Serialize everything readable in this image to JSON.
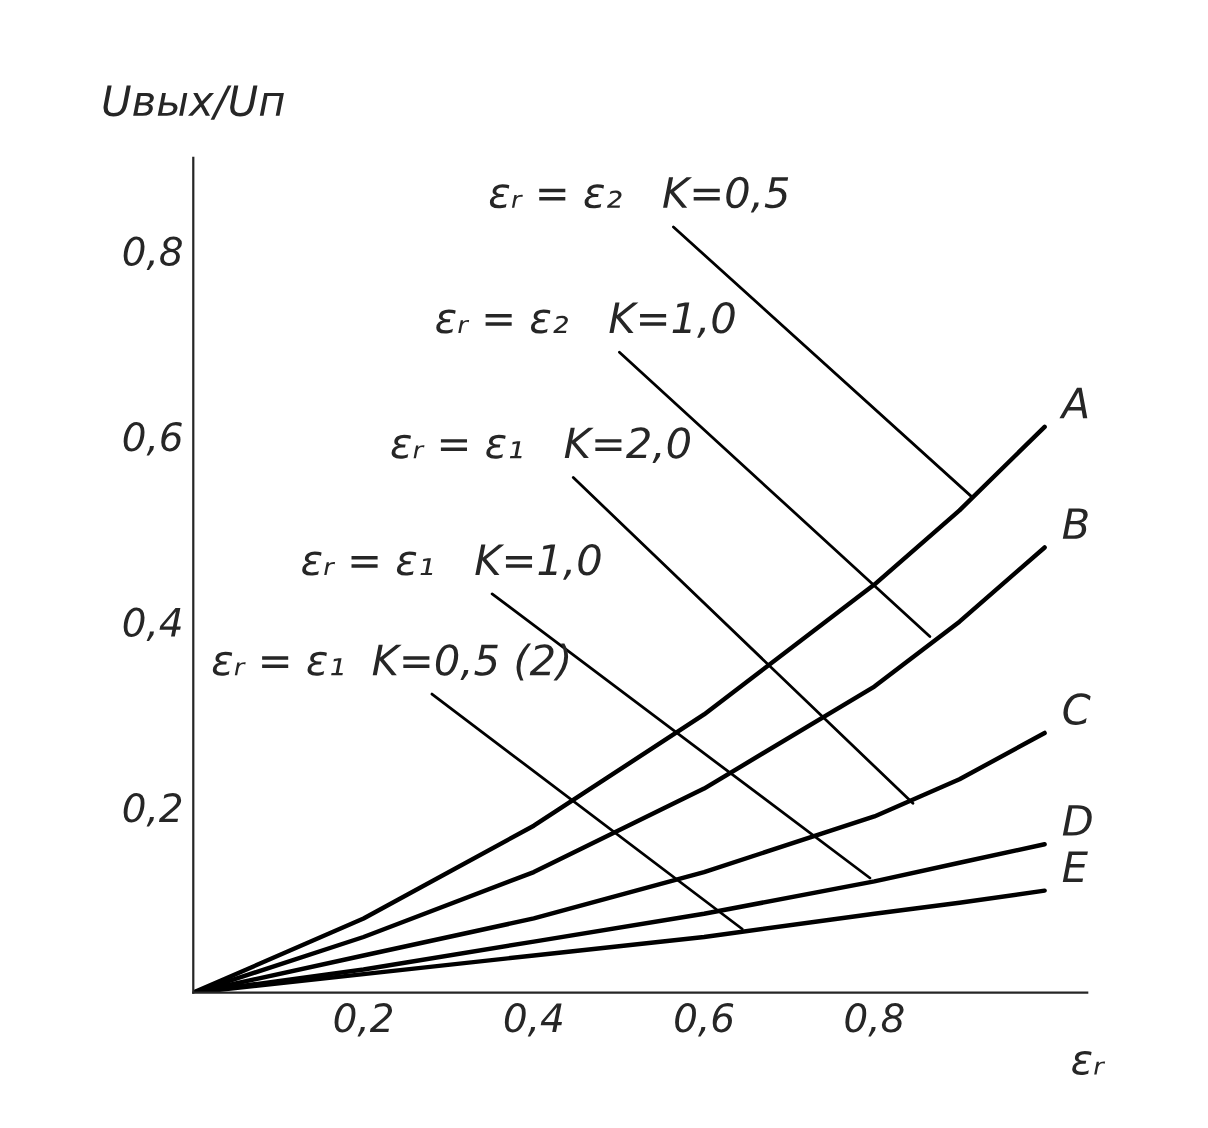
{
  "chart_data": {
    "type": "line",
    "xlabel": "εᵣ",
    "ylabel": "Uвых/Uп",
    "x": [
      0,
      0.2,
      0.4,
      0.6,
      0.8,
      0.9,
      1.0
    ],
    "series": [
      {
        "name": "A",
        "color": "#000000",
        "values": [
          0,
          0.08,
          0.18,
          0.3,
          0.44,
          0.52,
          0.61
        ]
      },
      {
        "name": "B",
        "color": "#000000",
        "values": [
          0,
          0.06,
          0.13,
          0.22,
          0.33,
          0.4,
          0.48
        ]
      },
      {
        "name": "C",
        "color": "#000000",
        "values": [
          0,
          0.04,
          0.08,
          0.13,
          0.19,
          0.23,
          0.28
        ]
      },
      {
        "name": "D",
        "color": "#000000",
        "values": [
          0,
          0.025,
          0.055,
          0.085,
          0.12,
          0.14,
          0.16
        ]
      },
      {
        "name": "E",
        "color": "#000000",
        "values": [
          0,
          0.02,
          0.04,
          0.06,
          0.085,
          0.097,
          0.11
        ]
      }
    ],
    "annotations": [
      {
        "text": "εᵣ = ε₂   K=0,5",
        "x": 0.92,
        "y": 0.53
      },
      {
        "text": "εᵣ = ε₂   K=1,0",
        "x": 0.87,
        "y": 0.38
      },
      {
        "text": "εᵣ = ε₁   K=2,0",
        "x": 0.85,
        "y": 0.2
      },
      {
        "text": "εᵣ = ε₁   K=1,0",
        "x": 0.8,
        "y": 0.12
      },
      {
        "text": "εᵣ = ε₁  K=0,5 (2)",
        "x": 0.65,
        "y": 0.065
      }
    ],
    "xlim": [
      0,
      1.05
    ],
    "ylim": [
      0,
      0.9
    ],
    "xticks": [
      {
        "value": 0.2,
        "label": "0,2"
      },
      {
        "value": 0.4,
        "label": "0,4"
      },
      {
        "value": 0.6,
        "label": "0,6"
      },
      {
        "value": 0.8,
        "label": "0,8"
      }
    ],
    "yticks": [
      {
        "value": 0.2,
        "label": "0,2"
      },
      {
        "value": 0.4,
        "label": "0,4"
      },
      {
        "value": 0.6,
        "label": "0,6"
      },
      {
        "value": 0.8,
        "label": "0,8"
      }
    ],
    "grid": false,
    "legend": false,
    "marker": "none",
    "line_style": "solid"
  }
}
